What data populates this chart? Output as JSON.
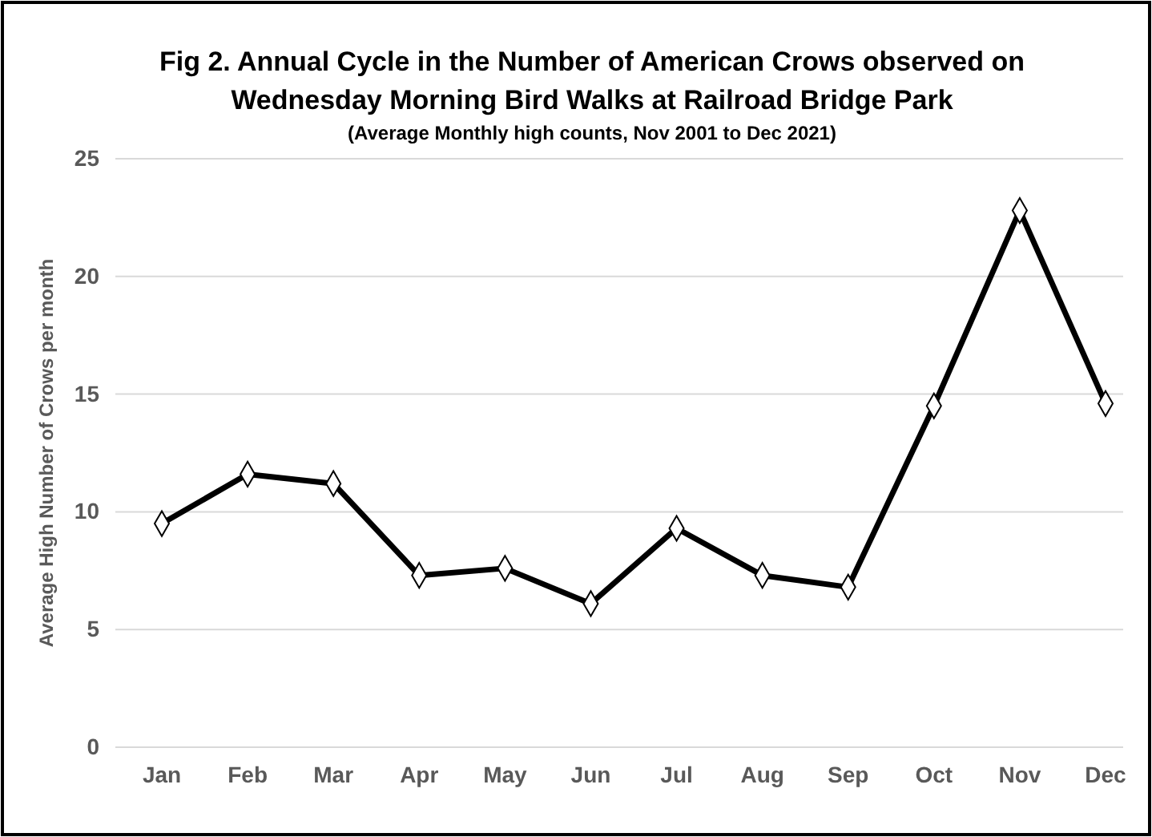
{
  "chart_data": {
    "type": "line",
    "title": "Fig 2. Annual Cycle in the Number of American Crows observed on Wednesday Morning Bird Walks at Railroad Bridge Park",
    "subtitle": "(Average Monthly high counts, Nov 2001 to Dec 2021)",
    "ylabel": "Average High Number of Crows per month",
    "categories": [
      "Jan",
      "Feb",
      "Mar",
      "Apr",
      "May",
      "Jun",
      "Jul",
      "Aug",
      "Sep",
      "Oct",
      "Nov",
      "Dec"
    ],
    "series": [
      {
        "color": "#000000",
        "values": [
          9.5,
          11.6,
          11.2,
          7.3,
          7.6,
          6.1,
          9.3,
          7.3,
          6.8,
          14.5,
          22.8,
          14.6
        ]
      }
    ],
    "ylim": [
      0,
      25
    ],
    "yticks": [
      0,
      5,
      10,
      15,
      20,
      25
    ],
    "grid": "y",
    "marker": "diamond",
    "line_style": "solid"
  }
}
